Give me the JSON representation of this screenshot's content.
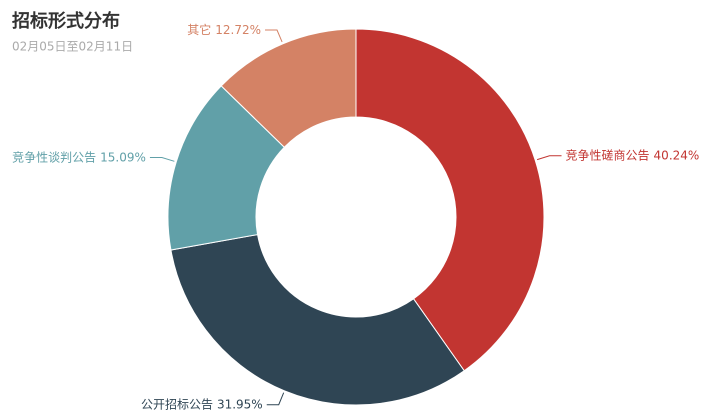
{
  "chart_data": {
    "type": "pie",
    "title": "招标形式分布",
    "subtitle": "02月05日至02月11日",
    "categories": [
      "竞争性磋商公告",
      "公开招标公告",
      "竞争性谈判公告",
      "其它"
    ],
    "values": [
      40.24,
      31.95,
      15.09,
      12.72
    ],
    "value_labels": [
      "40.24%",
      "31.95%",
      "15.09%",
      "12.72%"
    ],
    "colors": [
      "#c23531",
      "#2f4554",
      "#61a0a8",
      "#d48265"
    ]
  }
}
